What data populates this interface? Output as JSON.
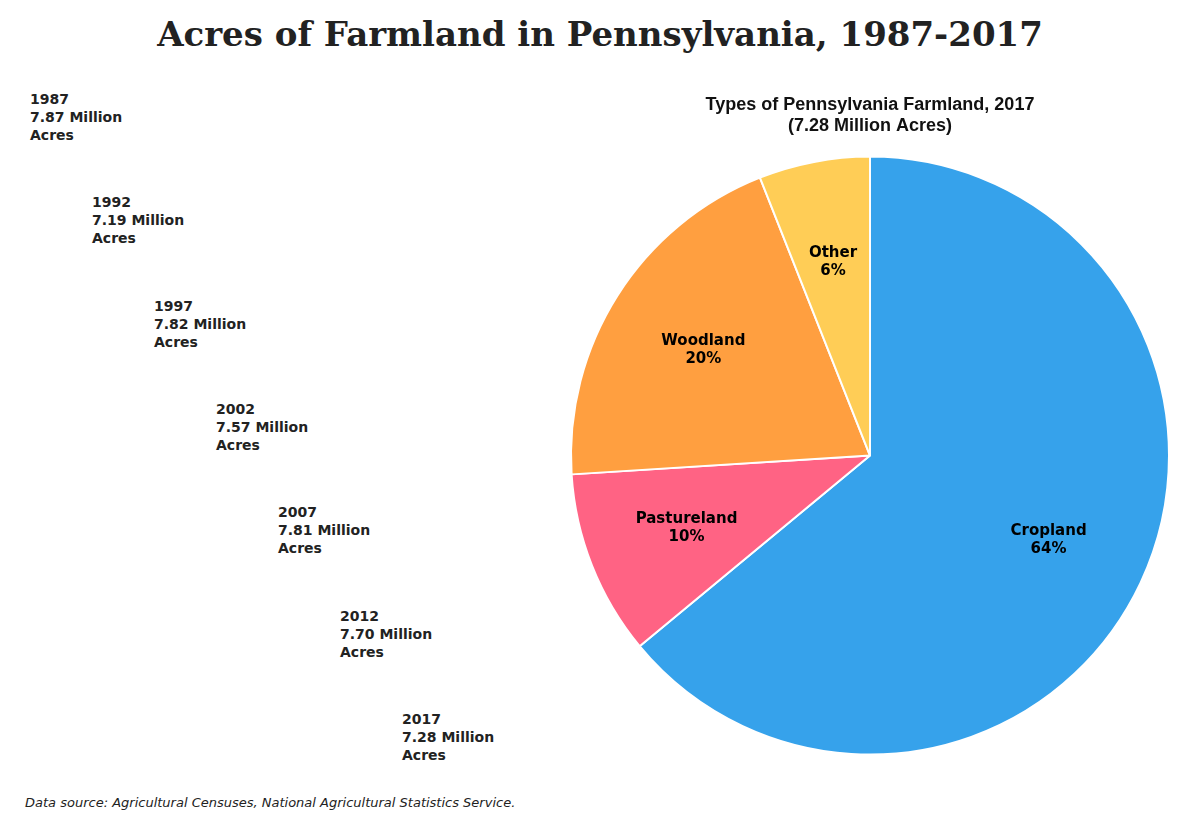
{
  "chart_data": {
    "type": "pie",
    "title": "Acres of Farmland in Pennsylvania, 1987-2017",
    "subtitle": [
      "Types of Pennsylvania Farmland, 2017",
      "(7.28 Million Acres)"
    ],
    "categories": [
      "Cropland",
      "Pastureland",
      "Woodland",
      "Other"
    ],
    "values": [
      64,
      10,
      20,
      6
    ],
    "value_labels": [
      "64%",
      "10%",
      "20%",
      "6%"
    ],
    "data_labels": true,
    "annotations": [
      "1987\n7.87 Million\nAcres",
      "1992\n7.19 Million\nAcres",
      "1997\n7.82 Million\nAcres",
      "2002\n7.57 Million\nAcres",
      "2007\n7.81 Million\nAcres",
      "2012\n7.70 Million\nAcres",
      "2017\n7.28 Million\nAcres"
    ],
    "note": "Data source: Agricultural Censuses, National Agricultural Statistics Service."
  }
}
